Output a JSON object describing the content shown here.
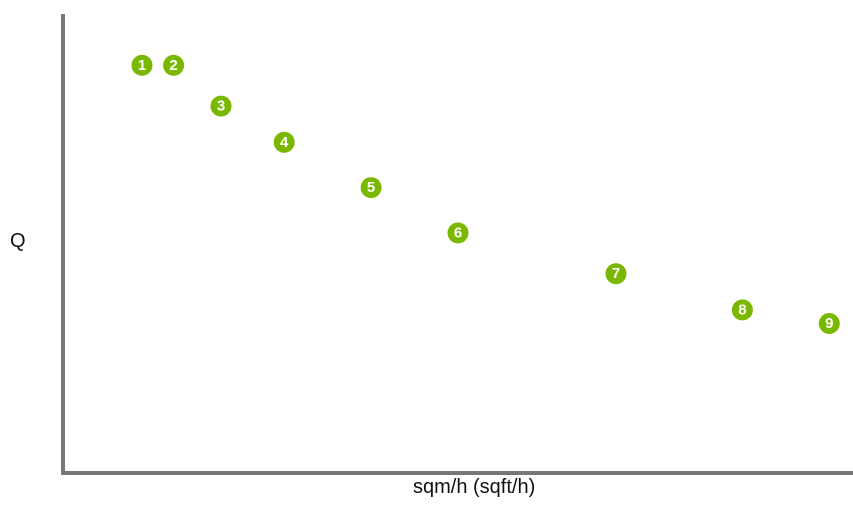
{
  "colors": {
    "axis": "#777777",
    "marker": "#7ab800",
    "marker_text": "#ffffff",
    "label_text": "#111111"
  },
  "chart_data": {
    "type": "scatter",
    "xlabel": "sqm/h (sqft/h)",
    "ylabel": "Q",
    "x_ticks": [],
    "y_ticks": [],
    "grid": false,
    "points": [
      {
        "label": "1",
        "x": 1.0,
        "y": 9.0
      },
      {
        "label": "2",
        "x": 1.4,
        "y": 9.0
      },
      {
        "label": "3",
        "x": 2.0,
        "y": 8.1
      },
      {
        "label": "4",
        "x": 2.8,
        "y": 7.3
      },
      {
        "label": "5",
        "x": 3.9,
        "y": 6.3
      },
      {
        "label": "6",
        "x": 5.0,
        "y": 5.3
      },
      {
        "label": "7",
        "x": 7.0,
        "y": 4.4
      },
      {
        "label": "8",
        "x": 8.6,
        "y": 3.6
      },
      {
        "label": "9",
        "x": 9.7,
        "y": 3.3
      }
    ]
  }
}
